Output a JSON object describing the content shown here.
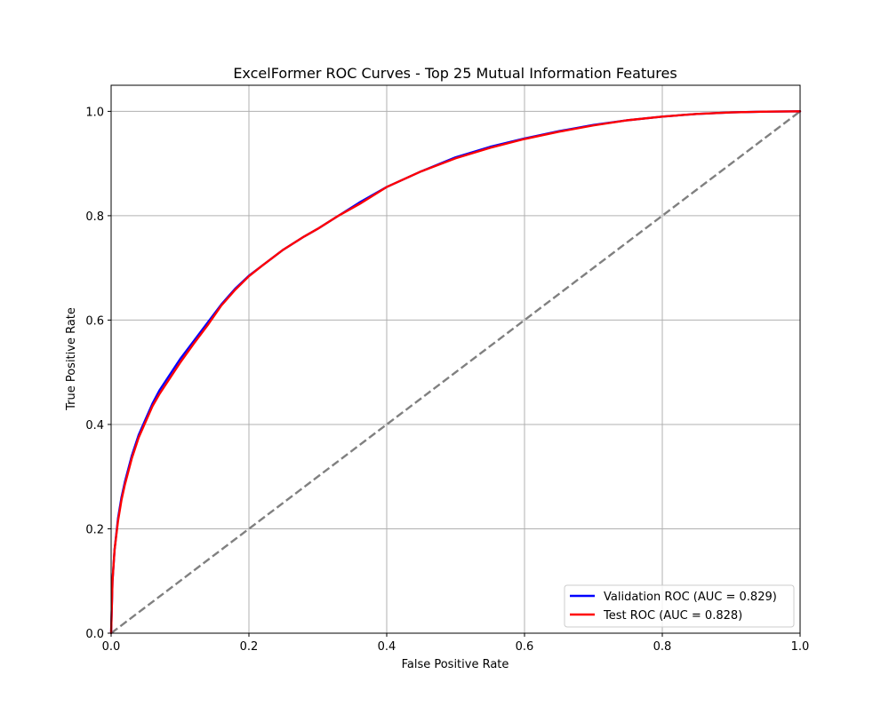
{
  "chart_data": {
    "type": "line",
    "title": "ExcelFormer ROC Curves - Top 25 Mutual Information Features",
    "xlabel": "False Positive Rate",
    "ylabel": "True Positive Rate",
    "xlim": [
      0.0,
      1.0
    ],
    "ylim": [
      0.0,
      1.05
    ],
    "xticks": [
      "0.0",
      "0.2",
      "0.4",
      "0.6",
      "0.8",
      "1.0"
    ],
    "yticks": [
      "0.0",
      "0.2",
      "0.4",
      "0.6",
      "0.8",
      "1.0"
    ],
    "grid": true,
    "legend_position": "lower-right",
    "series": [
      {
        "name": "Validation ROC (AUC = 0.829)",
        "color": "#0000ff",
        "style": "solid",
        "x": [
          0.0,
          0.002,
          0.005,
          0.01,
          0.015,
          0.02,
          0.03,
          0.04,
          0.05,
          0.06,
          0.07,
          0.08,
          0.09,
          0.1,
          0.12,
          0.14,
          0.16,
          0.18,
          0.2,
          0.22,
          0.25,
          0.28,
          0.3,
          0.33,
          0.36,
          0.4,
          0.45,
          0.5,
          0.55,
          0.6,
          0.65,
          0.7,
          0.75,
          0.8,
          0.85,
          0.9,
          0.95,
          1.0
        ],
        "y": [
          0.0,
          0.1,
          0.16,
          0.22,
          0.26,
          0.29,
          0.34,
          0.38,
          0.41,
          0.44,
          0.465,
          0.485,
          0.505,
          0.525,
          0.56,
          0.595,
          0.63,
          0.66,
          0.685,
          0.705,
          0.735,
          0.76,
          0.775,
          0.8,
          0.825,
          0.855,
          0.885,
          0.912,
          0.932,
          0.948,
          0.962,
          0.974,
          0.983,
          0.99,
          0.995,
          0.998,
          0.9995,
          1.0
        ]
      },
      {
        "name": "Test ROC (AUC = 0.828)",
        "color": "#ff0000",
        "style": "solid",
        "x": [
          0.0,
          0.002,
          0.005,
          0.01,
          0.015,
          0.02,
          0.03,
          0.04,
          0.05,
          0.06,
          0.07,
          0.08,
          0.09,
          0.1,
          0.12,
          0.14,
          0.16,
          0.18,
          0.2,
          0.22,
          0.25,
          0.28,
          0.3,
          0.33,
          0.36,
          0.4,
          0.45,
          0.5,
          0.55,
          0.6,
          0.65,
          0.7,
          0.75,
          0.8,
          0.85,
          0.9,
          0.95,
          1.0
        ],
        "y": [
          0.0,
          0.1,
          0.16,
          0.215,
          0.255,
          0.285,
          0.335,
          0.375,
          0.405,
          0.435,
          0.458,
          0.478,
          0.498,
          0.518,
          0.555,
          0.59,
          0.628,
          0.658,
          0.684,
          0.705,
          0.735,
          0.76,
          0.775,
          0.8,
          0.822,
          0.855,
          0.885,
          0.91,
          0.93,
          0.947,
          0.961,
          0.973,
          0.983,
          0.99,
          0.995,
          0.998,
          0.9995,
          1.0
        ]
      },
      {
        "name": "",
        "color": "#808080",
        "style": "dashed",
        "x": [
          0.0,
          1.0
        ],
        "y": [
          0.0,
          1.0
        ]
      }
    ]
  }
}
